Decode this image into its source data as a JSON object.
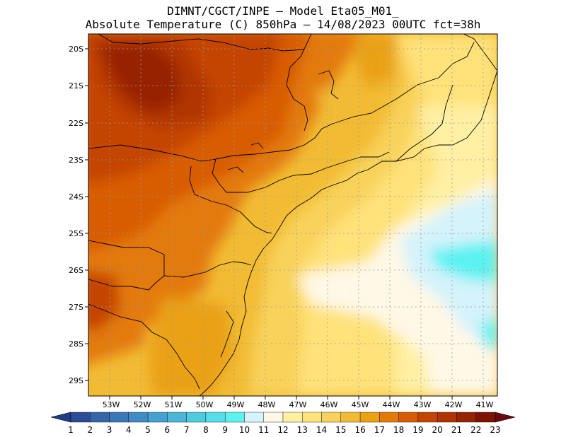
{
  "title": {
    "line1": "DIMNT/CGCT/INPE —  Model Eta05_M01_",
    "line2": "Absolute Temperature (C) 850hPa —  14/08/2023 00UTC fct=38h"
  },
  "map": {
    "lat_labels": [
      "20S",
      "21S",
      "22S",
      "23S",
      "24S",
      "25S",
      "26S",
      "27S",
      "28S",
      "29S"
    ],
    "lon_labels": [
      "53W",
      "52W",
      "51W",
      "50W",
      "49W",
      "48W",
      "47W",
      "46W",
      "45W",
      "44W",
      "43W",
      "42W",
      "41W"
    ]
  },
  "colorbar": {
    "labels": [
      "1",
      "2",
      "3",
      "4",
      "5",
      "6",
      "7",
      "8",
      "9",
      "10",
      "11",
      "12",
      "13",
      "14",
      "15",
      "16",
      "17",
      "18",
      "19",
      "20",
      "21",
      "22",
      "23"
    ],
    "colors": [
      "#2c4d96",
      "#3567a8",
      "#3a78b8",
      "#3f8cc6",
      "#44a1d0",
      "#4ab6d8",
      "#4fcbe0",
      "#55dfe9",
      "#5cf2f2",
      "#d4f3fb",
      "#fff8e6",
      "#fff0a4",
      "#ffe27a",
      "#f8d25a",
      "#f2bb34",
      "#eaa112",
      "#e37a08",
      "#d85c06",
      "#c44404",
      "#b03404",
      "#962404",
      "#7e1204"
    ],
    "end_low": "#1f3c88",
    "end_high": "#6a0a10"
  }
}
